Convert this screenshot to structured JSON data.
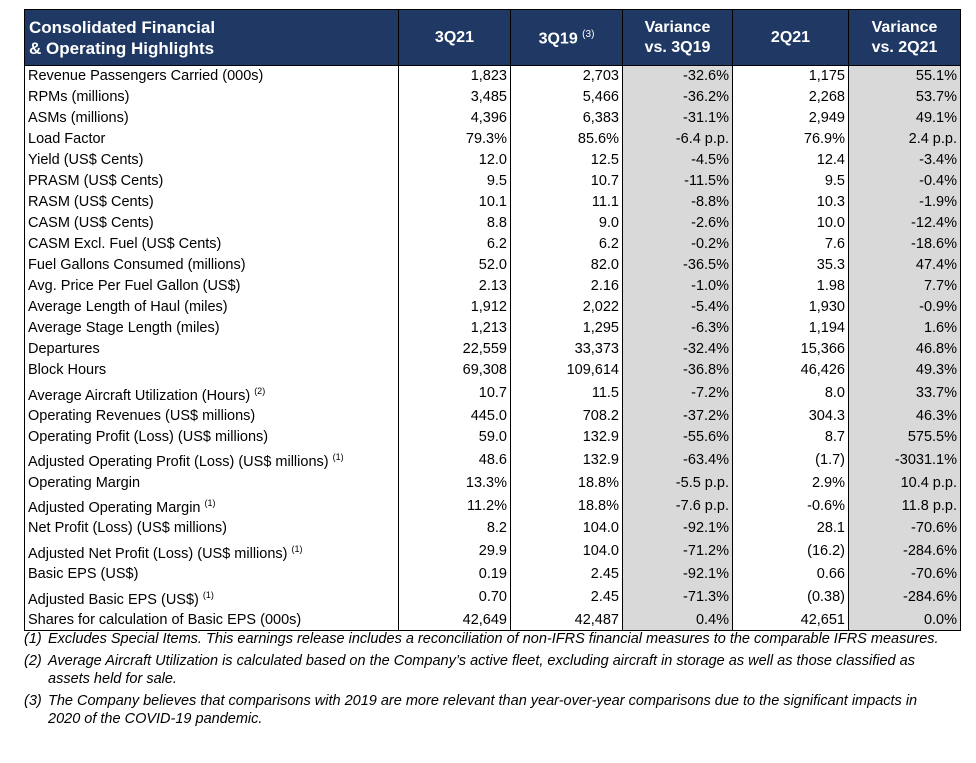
{
  "header": {
    "title_line1": "Consolidated Financial",
    "title_line2": "& Operating Highlights",
    "col1": "3Q21",
    "col2": "3Q19",
    "col2_sup": "(3)",
    "col3_line1": "Variance",
    "col3_line2": "vs. 3Q19",
    "col4": "2Q21",
    "col5_line1": "Variance",
    "col5_line2": "vs. 2Q21"
  },
  "rows": [
    {
      "label": "Revenue Passengers Carried (000s)",
      "sup": "",
      "q3_21": "1,823",
      "q3_19": "2,703",
      "var_19": "-32.6%",
      "q2_21": "1,175",
      "var_q2": "55.1%"
    },
    {
      "label": "RPMs (millions)",
      "sup": "",
      "q3_21": "3,485",
      "q3_19": "5,466",
      "var_19": "-36.2%",
      "q2_21": "2,268",
      "var_q2": "53.7%"
    },
    {
      "label": "ASMs (millions)",
      "sup": "",
      "q3_21": "4,396",
      "q3_19": "6,383",
      "var_19": "-31.1%",
      "q2_21": "2,949",
      "var_q2": "49.1%"
    },
    {
      "label": "Load Factor",
      "sup": "",
      "q3_21": "79.3%",
      "q3_19": "85.6%",
      "var_19": "-6.4 p.p.",
      "q2_21": "76.9%",
      "var_q2": "2.4 p.p."
    },
    {
      "label": "Yield (US$ Cents)",
      "sup": "",
      "q3_21": "12.0",
      "q3_19": "12.5",
      "var_19": "-4.5%",
      "q2_21": "12.4",
      "var_q2": "-3.4%"
    },
    {
      "label": "PRASM (US$ Cents)",
      "sup": "",
      "q3_21": "9.5",
      "q3_19": "10.7",
      "var_19": "-11.5%",
      "q2_21": "9.5",
      "var_q2": "-0.4%"
    },
    {
      "label": "RASM (US$ Cents)",
      "sup": "",
      "q3_21": "10.1",
      "q3_19": "11.1",
      "var_19": "-8.8%",
      "q2_21": "10.3",
      "var_q2": "-1.9%"
    },
    {
      "label": "CASM (US$ Cents)",
      "sup": "",
      "q3_21": "8.8",
      "q3_19": "9.0",
      "var_19": "-2.6%",
      "q2_21": "10.0",
      "var_q2": "-12.4%"
    },
    {
      "label": "CASM Excl. Fuel (US$ Cents)",
      "sup": "",
      "q3_21": "6.2",
      "q3_19": "6.2",
      "var_19": "-0.2%",
      "q2_21": "7.6",
      "var_q2": "-18.6%"
    },
    {
      "label": "Fuel Gallons Consumed (millions)",
      "sup": "",
      "q3_21": "52.0",
      "q3_19": "82.0",
      "var_19": "-36.5%",
      "q2_21": "35.3",
      "var_q2": "47.4%"
    },
    {
      "label": "Avg. Price Per Fuel Gallon (US$)",
      "sup": "",
      "q3_21": "2.13",
      "q3_19": "2.16",
      "var_19": "-1.0%",
      "q2_21": "1.98",
      "var_q2": "7.7%"
    },
    {
      "label": "Average Length of Haul (miles)",
      "sup": "",
      "q3_21": "1,912",
      "q3_19": "2,022",
      "var_19": "-5.4%",
      "q2_21": "1,930",
      "var_q2": "-0.9%"
    },
    {
      "label": "Average Stage Length (miles)",
      "sup": "",
      "q3_21": "1,213",
      "q3_19": "1,295",
      "var_19": "-6.3%",
      "q2_21": "1,194",
      "var_q2": "1.6%"
    },
    {
      "label": "Departures",
      "sup": "",
      "q3_21": "22,559",
      "q3_19": "33,373",
      "var_19": "-32.4%",
      "q2_21": "15,366",
      "var_q2": "46.8%"
    },
    {
      "label": "Block Hours",
      "sup": "",
      "q3_21": "69,308",
      "q3_19": "109,614",
      "var_19": "-36.8%",
      "q2_21": "46,426",
      "var_q2": "49.3%"
    },
    {
      "label": "Average Aircraft Utilization (Hours)",
      "sup": "(2)",
      "q3_21": "10.7",
      "q3_19": "11.5",
      "var_19": "-7.2%",
      "q2_21": "8.0",
      "var_q2": "33.7%"
    },
    {
      "label": "Operating Revenues (US$ millions)",
      "sup": "",
      "q3_21": "445.0",
      "q3_19": "708.2",
      "var_19": "-37.2%",
      "q2_21": "304.3",
      "var_q2": "46.3%"
    },
    {
      "label": "Operating Profit (Loss) (US$ millions)",
      "sup": "",
      "q3_21": "59.0",
      "q3_19": "132.9",
      "var_19": "-55.6%",
      "q2_21": "8.7",
      "var_q2": "575.5%"
    },
    {
      "label": "Adjusted Operating Profit (Loss) (US$ millions)",
      "sup": "(1)",
      "q3_21": "48.6",
      "q3_19": "132.9",
      "var_19": "-63.4%",
      "q2_21": "(1.7)",
      "var_q2": "-3031.1%"
    },
    {
      "label": "Operating Margin",
      "sup": "",
      "q3_21": "13.3%",
      "q3_19": "18.8%",
      "var_19": "-5.5 p.p.",
      "q2_21": "2.9%",
      "var_q2": "10.4 p.p."
    },
    {
      "label": "Adjusted Operating Margin",
      "sup": "(1)",
      "q3_21": "11.2%",
      "q3_19": "18.8%",
      "var_19": "-7.6 p.p.",
      "q2_21": "-0.6%",
      "var_q2": "11.8 p.p."
    },
    {
      "label": "Net Profit (Loss) (US$ millions)",
      "sup": "",
      "q3_21": "8.2",
      "q3_19": "104.0",
      "var_19": "-92.1%",
      "q2_21": "28.1",
      "var_q2": "-70.6%"
    },
    {
      "label": "Adjusted Net Profit (Loss) (US$ millions)",
      "sup": "(1)",
      "q3_21": "29.9",
      "q3_19": "104.0",
      "var_19": "-71.2%",
      "q2_21": "(16.2)",
      "var_q2": "-284.6%"
    },
    {
      "label": "Basic EPS (US$)",
      "sup": "",
      "q3_21": "0.19",
      "q3_19": "2.45",
      "var_19": "-92.1%",
      "q2_21": "0.66",
      "var_q2": "-70.6%"
    },
    {
      "label": "Adjusted Basic EPS (US$)",
      "sup": "(1)",
      "q3_21": "0.70",
      "q3_19": "2.45",
      "var_19": "-71.3%",
      "q2_21": "(0.38)",
      "var_q2": "-284.6%"
    },
    {
      "label": "Shares for calculation of Basic EPS (000s)",
      "sup": "",
      "q3_21": "42,649",
      "q3_19": "42,487",
      "var_19": "0.4%",
      "q2_21": "42,651",
      "var_q2": "0.0%"
    }
  ],
  "footnotes": [
    {
      "mark": "(1)",
      "text": "Excludes Special Items. This earnings release includes a reconciliation of non-IFRS financial measures to the comparable IFRS measures."
    },
    {
      "mark": "(2)",
      "text": "Average Aircraft Utilization is calculated based on the Company’s active fleet, excluding aircraft in storage as well as those classified as assets held for sale."
    },
    {
      "mark": "(3)",
      "text": "The Company believes that comparisons with 2019 are more relevant than year-over-year comparisons due to the significant impacts in 2020 of the COVID-19 pandemic."
    }
  ],
  "colors": {
    "header_bg": "#1f3864",
    "header_text": "#ffffff",
    "variance_shade": "#d9d9d9"
  }
}
